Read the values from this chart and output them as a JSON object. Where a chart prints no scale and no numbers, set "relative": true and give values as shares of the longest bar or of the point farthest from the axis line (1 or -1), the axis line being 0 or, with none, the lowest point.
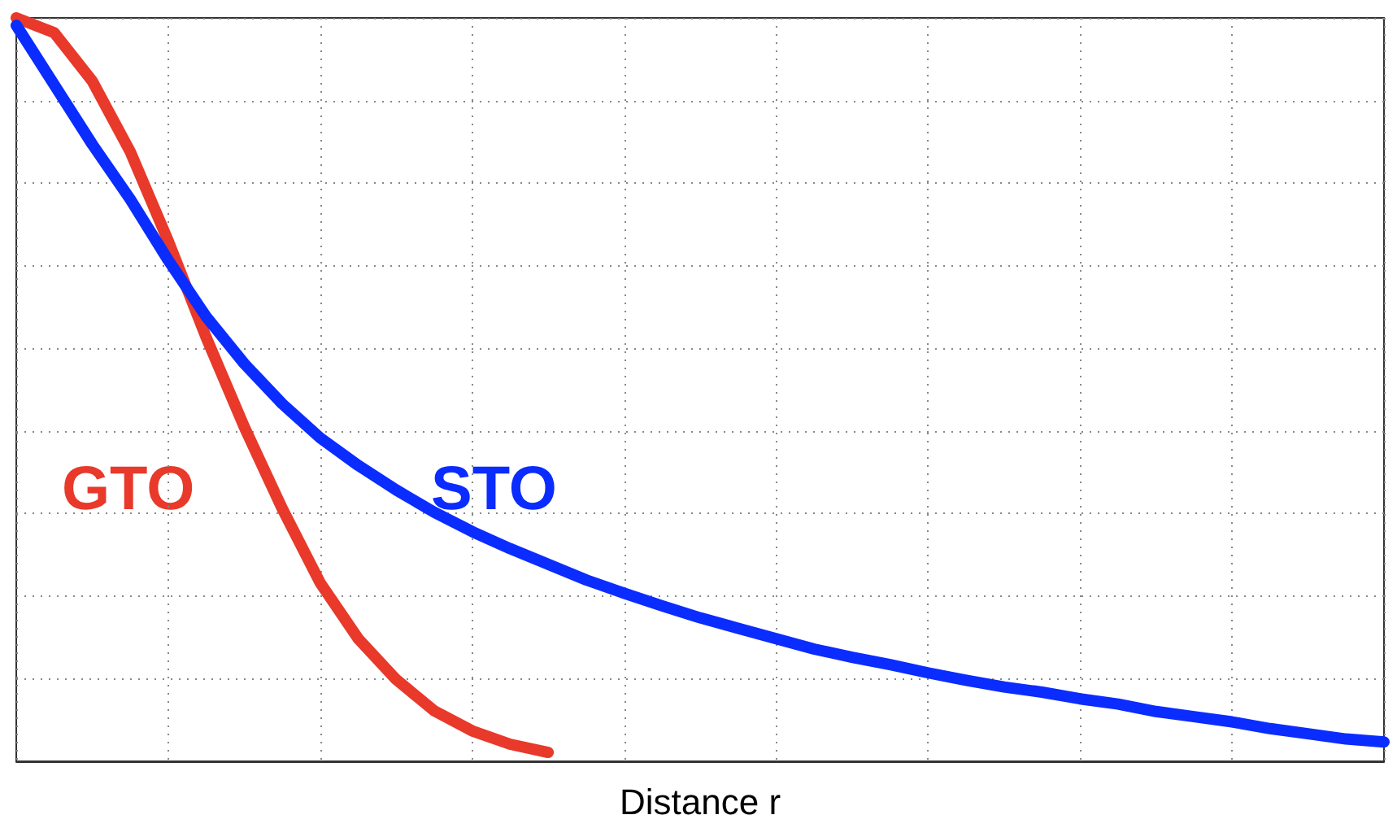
{
  "chart_data": {
    "type": "line",
    "relative": true,
    "xlabel": "Distance r",
    "grid": true,
    "legend": false,
    "marker": "none",
    "line_style": "solid",
    "categories": [
      null,
      null,
      null,
      null,
      null,
      null,
      null,
      null,
      null,
      null,
      null,
      null,
      null,
      null,
      null,
      null,
      null,
      null,
      null,
      null,
      null,
      null,
      null,
      null,
      null,
      null,
      null,
      null,
      null,
      null,
      null,
      null,
      null,
      null,
      null,
      null,
      null
    ],
    "series": [
      {
        "name": "GTO",
        "color": "#e8392a",
        "values": [
          1,
          0.98,
          0.915,
          0.82,
          0.7,
          0.57,
          0.45,
          0.34,
          0.24,
          0.165,
          0.11,
          0.068,
          0.041,
          0.023,
          0.012,
          null,
          null,
          null,
          null,
          null,
          null,
          null,
          null,
          null,
          null,
          null,
          null,
          null,
          null,
          null,
          null,
          null,
          null,
          null,
          null,
          null,
          null
        ]
      },
      {
        "name": "STO",
        "color": "#0a2cff",
        "values": [
          0.99,
          0.91,
          0.83,
          0.756,
          0.674,
          0.598,
          0.535,
          0.481,
          0.435,
          0.398,
          0.365,
          0.335,
          0.309,
          0.286,
          0.265,
          0.244,
          0.226,
          0.209,
          0.193,
          0.179,
          0.165,
          0.151,
          0.14,
          0.13,
          0.119,
          0.109,
          0.1,
          0.093,
          0.084,
          0.077,
          0.067,
          0.06,
          0.053,
          0.044,
          0.037,
          0.03,
          0.026
        ]
      }
    ]
  }
}
